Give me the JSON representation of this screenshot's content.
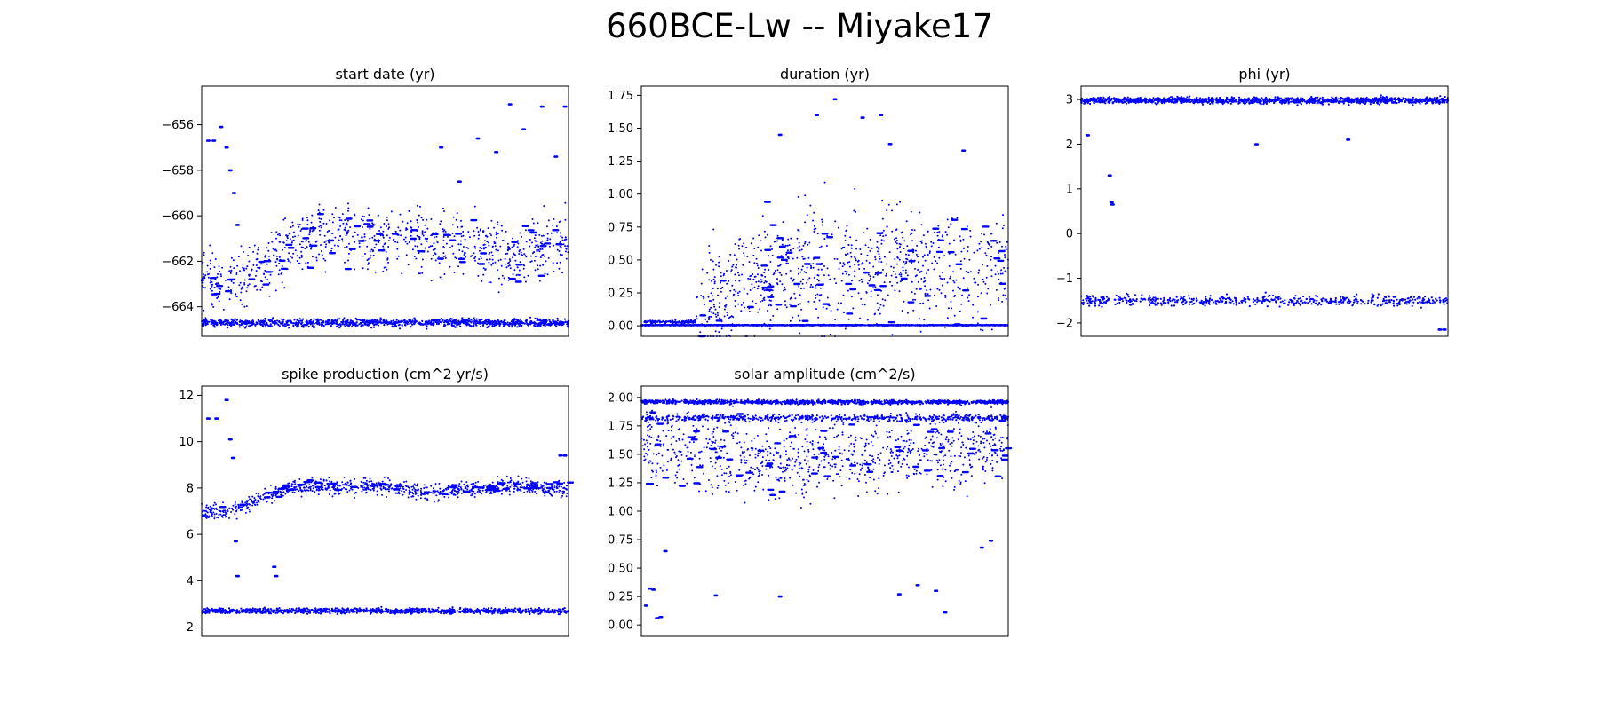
{
  "figure": {
    "title": "660BCE-Lw -- Miyake17",
    "point_color": "#0000ff"
  },
  "chart_data": [
    {
      "type": "scatter",
      "title": "start date (yr)",
      "xlabel": "",
      "ylabel": "",
      "xlim": [
        0,
        4000
      ],
      "ylim": [
        -665.3,
        -654.3
      ],
      "yticks": [
        -664,
        -662,
        -660,
        -658,
        -656
      ],
      "grid": false,
      "bands": [
        {
          "from": 0,
          "to": 4000,
          "center": -664.7,
          "spread": 0.3,
          "weight": 1.6
        }
      ],
      "segments": [
        [
          0,
          -662.8
        ],
        [
          300,
          -662.7
        ],
        [
          500,
          -662.5
        ],
        [
          700,
          -662.2
        ],
        [
          900,
          -661.6
        ],
        [
          1100,
          -661.0
        ],
        [
          1400,
          -660.9
        ],
        [
          1700,
          -660.9
        ],
        [
          2000,
          -661.0
        ],
        [
          2300,
          -661.1
        ],
        [
          2600,
          -661.2
        ],
        [
          2800,
          -661.1
        ],
        [
          3000,
          -661.3
        ],
        [
          3200,
          -661.6
        ],
        [
          3400,
          -661.8
        ],
        [
          3600,
          -661.5
        ],
        [
          3800,
          -661.2
        ],
        [
          4000,
          -661.0
        ]
      ],
      "scatter_noise": 1.4,
      "extra_points": [
        [
          60,
          -656.7
        ],
        [
          120,
          -656.7
        ],
        [
          200,
          -656.1
        ],
        [
          260,
          -657.0
        ],
        [
          300,
          -658.0
        ],
        [
          340,
          -659.0
        ],
        [
          380,
          -660.4
        ],
        [
          2600,
          -657.0
        ],
        [
          2800,
          -658.5
        ],
        [
          3000,
          -656.6
        ],
        [
          3200,
          -657.2
        ],
        [
          3350,
          -655.1
        ],
        [
          3500,
          -656.2
        ],
        [
          3700,
          -655.2
        ],
        [
          3850,
          -657.4
        ],
        [
          3950,
          -655.2
        ]
      ]
    },
    {
      "type": "scatter",
      "title": "duration (yr)",
      "xlabel": "",
      "ylabel": "",
      "xlim": [
        0,
        4000
      ],
      "ylim": [
        -0.08,
        1.82
      ],
      "yticks": [
        0.0,
        0.25,
        0.5,
        0.75,
        1.0,
        1.25,
        1.5,
        1.75
      ],
      "grid": false,
      "bands": [
        {
          "from": 0,
          "to": 4000,
          "center": 0.005,
          "spread": 0.005,
          "weight": 2.0
        },
        {
          "from": 0,
          "to": 600,
          "center": 0.03,
          "spread": 0.02,
          "weight": 1.0
        }
      ],
      "segments": [
        [
          600,
          0.1
        ],
        [
          800,
          0.2
        ],
        [
          1000,
          0.28
        ],
        [
          1200,
          0.35
        ],
        [
          1500,
          0.4
        ],
        [
          2000,
          0.45
        ],
        [
          2500,
          0.45
        ],
        [
          3000,
          0.45
        ],
        [
          3500,
          0.45
        ],
        [
          4000,
          0.45
        ]
      ],
      "scatter_noise": 0.45,
      "extra_points": [
        [
          1500,
          1.45
        ],
        [
          1900,
          1.6
        ],
        [
          2100,
          1.72
        ],
        [
          2600,
          1.6
        ],
        [
          2700,
          1.38
        ],
        [
          3500,
          1.33
        ],
        [
          2400,
          1.58
        ]
      ]
    },
    {
      "type": "scatter",
      "title": "phi (yr)",
      "xlabel": "",
      "ylabel": "",
      "xlim": [
        0,
        4000
      ],
      "ylim": [
        -2.3,
        3.3
      ],
      "yticks": [
        -2,
        -1,
        0,
        1,
        2,
        3
      ],
      "grid": false,
      "bands": [
        {
          "from": 0,
          "to": 4000,
          "center": 2.98,
          "spread": 0.12,
          "weight": 2.0
        },
        {
          "from": 0,
          "to": 4000,
          "center": -1.5,
          "spread": 0.2,
          "weight": 0.8
        }
      ],
      "segments": [],
      "scatter_noise": 0.0,
      "extra_points": [
        [
          300,
          1.3
        ],
        [
          320,
          0.7
        ],
        [
          330,
          0.65
        ],
        [
          60,
          2.2
        ],
        [
          3900,
          -2.15
        ],
        [
          3950,
          -2.15
        ],
        [
          1900,
          2.0
        ],
        [
          2900,
          2.1
        ]
      ]
    },
    {
      "type": "scatter",
      "title": "spike production (cm^2 yr/s)",
      "xlabel": "",
      "ylabel": "",
      "xlim": [
        0,
        4000
      ],
      "ylim": [
        1.6,
        12.4
      ],
      "yticks": [
        2,
        4,
        6,
        8,
        10,
        12
      ],
      "grid": false,
      "bands": [
        {
          "from": 0,
          "to": 4000,
          "center": 2.7,
          "spread": 0.2,
          "weight": 1.6
        }
      ],
      "segments": [
        [
          0,
          7.0
        ],
        [
          300,
          7.0
        ],
        [
          500,
          7.3
        ],
        [
          700,
          7.6
        ],
        [
          900,
          8.0
        ],
        [
          1200,
          8.1
        ],
        [
          1500,
          8.0
        ],
        [
          2000,
          8.1
        ],
        [
          2500,
          7.8
        ],
        [
          3000,
          8.0
        ],
        [
          3500,
          8.1
        ],
        [
          4000,
          7.9
        ]
      ],
      "scatter_noise": 0.35,
      "extra_points": [
        [
          60,
          11.0
        ],
        [
          150,
          11.0
        ],
        [
          260,
          11.8
        ],
        [
          300,
          10.1
        ],
        [
          330,
          9.3
        ],
        [
          380,
          4.2
        ],
        [
          360,
          5.7
        ],
        [
          780,
          4.6
        ],
        [
          800,
          4.2
        ],
        [
          3950,
          9.4
        ],
        [
          3900,
          9.4
        ]
      ]
    },
    {
      "type": "scatter",
      "title": "solar amplitude (cm^2/s)",
      "xlabel": "",
      "ylabel": "",
      "xlim": [
        0,
        4000
      ],
      "ylim": [
        -0.1,
        2.1
      ],
      "yticks": [
        0.0,
        0.25,
        0.5,
        0.75,
        1.0,
        1.25,
        1.5,
        1.75,
        2.0
      ],
      "grid": false,
      "bands": [
        {
          "from": 0,
          "to": 4000,
          "center": 1.96,
          "spread": 0.03,
          "weight": 1.6
        },
        {
          "from": 0,
          "to": 4000,
          "center": 1.82,
          "spread": 0.05,
          "weight": 0.8
        }
      ],
      "segments": [
        [
          0,
          1.6
        ],
        [
          1000,
          1.5
        ],
        [
          2000,
          1.45
        ],
        [
          3000,
          1.5
        ],
        [
          4000,
          1.6
        ]
      ],
      "scatter_noise": 0.35,
      "extra_points": [
        [
          60,
          1.24
        ],
        [
          100,
          1.24
        ],
        [
          40,
          0.17
        ],
        [
          80,
          0.32
        ],
        [
          120,
          0.31
        ],
        [
          160,
          0.06
        ],
        [
          200,
          0.07
        ],
        [
          250,
          0.65
        ],
        [
          800,
          0.26
        ],
        [
          1500,
          0.25
        ],
        [
          2800,
          0.27
        ],
        [
          3000,
          0.35
        ],
        [
          3200,
          0.3
        ],
        [
          3300,
          0.11
        ],
        [
          3700,
          0.68
        ],
        [
          3800,
          0.74
        ]
      ]
    }
  ]
}
